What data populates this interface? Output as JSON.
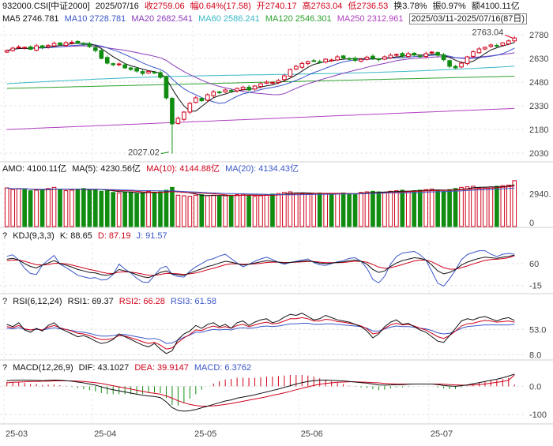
{
  "header": {
    "code": "932000.CSI[中证2000]",
    "date": "2025/07/16",
    "close": "收2759.06",
    "change": "幅0.64%(17.58)",
    "open": "开2740.17",
    "high": "高2763.04",
    "low": "低2736.53",
    "turnover": "换3.78%",
    "amplitude": "振0.97%",
    "amount": "额4100.11亿"
  },
  "ma_line": {
    "ma5": "MA5 2746.781",
    "ma10": "MA10 2728.781",
    "ma20": "MA20 2682.541",
    "ma60": "MA60 2586.241",
    "ma120": "MA120 2546.301",
    "ma250": "MA250 2312.961",
    "range": "2025/03/11-2025/07/16(87日)"
  },
  "panels": {
    "amo": {
      "amo": "AMO: 4100.11亿",
      "ma5": "MA(5): 4230.56亿",
      "ma10": "MA(10): 4144.88亿",
      "ma20": "MA(20): 4134.43亿"
    },
    "kdj": {
      "q": "?",
      "name": "KDJ(9,3,3)",
      "k": "K: 88.65",
      "d": "D: 87.19",
      "j": "J: 91.57"
    },
    "rsi": {
      "q": "?",
      "name": "RSI(6,12,24)",
      "r1": "RSI1: 69.37",
      "r2": "RSI2: 66.28",
      "r3": "RSI3: 61.58"
    },
    "macd": {
      "q": "?",
      "name": "MACD(12,26,9)",
      "dif": "DIF: 43.1027",
      "dea": "DEA: 39.9147",
      "macd": "MACD: 6.3762"
    }
  },
  "annotations": {
    "high": "2763.04",
    "low": "2027.02"
  },
  "colors": {
    "up": "#d0021b",
    "down": "#108d10",
    "ma5": "#111111",
    "ma10": "#3a56c9",
    "ma20": "#8a3ab9",
    "ma60": "#38b8c8",
    "ma120": "#2da12d",
    "ma250": "#b040c0"
  },
  "chart_data": {
    "type": "candlestick",
    "x_ticks": [
      "25-03",
      "25-04",
      "25-05",
      "25-06",
      "25-07"
    ],
    "price_axis": {
      "ticks": [
        "2780",
        "2630",
        "2480",
        "2330",
        "2180",
        "2030"
      ],
      "ylim": [
        1990,
        2800
      ]
    },
    "volume_axis": {
      "ticks": [
        "2940.",
        "0"
      ],
      "ylim": [
        0,
        4300
      ]
    },
    "kdj_axis": {
      "ticks": [
        "60",
        "-15"
      ],
      "ylim": [
        -40,
        130
      ]
    },
    "rsi_axis": {
      "ticks": [
        "53.0",
        "8.0"
      ],
      "ylim": [
        0,
        90
      ]
    },
    "macd_axis": {
      "ticks": [
        "0.0",
        "-100"
      ],
      "ylim": [
        -130,
        40
      ]
    },
    "month_starts": [
      0,
      15,
      32,
      50,
      72
    ],
    "closes": [
      2680,
      2695,
      2702,
      2700,
      2688,
      2710,
      2698,
      2712,
      2725,
      2718,
      2730,
      2732,
      2728,
      2720,
      2705,
      2680,
      2630,
      2600,
      2590,
      2595,
      2570,
      2560,
      2550,
      2535,
      2548,
      2540,
      2510,
      2380,
      2215,
      2250,
      2290,
      2345,
      2380,
      2362,
      2400,
      2418,
      2412,
      2430,
      2422,
      2440,
      2448,
      2430,
      2455,
      2470,
      2480,
      2478,
      2490,
      2520,
      2560,
      2580,
      2598,
      2610,
      2612,
      2605,
      2625,
      2620,
      2640,
      2632,
      2628,
      2618,
      2624,
      2638,
      2630,
      2622,
      2640,
      2650,
      2655,
      2645,
      2660,
      2652,
      2642,
      2660,
      2670,
      2650,
      2622,
      2580,
      2570,
      2600,
      2640,
      2672,
      2690,
      2700,
      2715,
      2710,
      2728,
      2741,
      2759
    ],
    "volume": [
      3450,
      3300,
      3400,
      3350,
      3200,
      3250,
      3300,
      3400,
      3500,
      3300,
      3200,
      3250,
      3350,
      3400,
      3300,
      3250,
      3150,
      3200,
      3050,
      3000,
      3100,
      3050,
      2950,
      3000,
      3150,
      3050,
      3100,
      3250,
      3500,
      2800,
      2750,
      2700,
      2800,
      2850,
      2750,
      2800,
      2700,
      2750,
      2800,
      2850,
      2900,
      2800,
      2700,
      2750,
      2850,
      2900,
      2950,
      3050,
      3100,
      3000,
      2950,
      2900,
      2950,
      3000,
      2900,
      2850,
      2950,
      3000,
      2950,
      2900,
      3050,
      3100,
      3150,
      3100,
      3050,
      3150,
      3200,
      3250,
      3150,
      3200,
      3250,
      3300,
      3350,
      3250,
      3150,
      3300,
      3400,
      3500,
      3550,
      3600,
      3450,
      3500,
      3550,
      3600,
      3650,
      3700,
      4100
    ],
    "kdj": {
      "K": [
        75,
        78,
        72,
        60,
        50,
        45,
        55,
        62,
        70,
        60,
        55,
        48,
        40,
        35,
        30,
        28,
        22,
        20,
        25,
        40,
        35,
        30,
        22,
        15,
        12,
        20,
        30,
        35,
        25,
        22,
        20,
        28,
        35,
        42,
        50,
        55,
        62,
        68,
        65,
        60,
        55,
        58,
        62,
        66,
        70,
        68,
        65,
        62,
        64,
        66,
        68,
        70,
        66,
        62,
        60,
        62,
        64,
        66,
        70,
        72,
        68,
        58,
        40,
        30,
        35,
        50,
        62,
        70,
        75,
        80,
        78,
        72,
        55,
        35,
        25,
        30,
        40,
        55,
        65,
        72,
        78,
        82,
        80,
        78,
        82,
        85,
        89
      ],
      "D": [
        70,
        72,
        72,
        68,
        62,
        56,
        55,
        57,
        61,
        61,
        59,
        55,
        50,
        45,
        40,
        36,
        31,
        27,
        26,
        31,
        32,
        31,
        28,
        24,
        20,
        20,
        23,
        27,
        26,
        25,
        23,
        25,
        28,
        33,
        39,
        44,
        50,
        56,
        59,
        59,
        58,
        58,
        59,
        61,
        64,
        65,
        65,
        64,
        64,
        65,
        66,
        67,
        67,
        65,
        63,
        63,
        63,
        64,
        66,
        68,
        68,
        65,
        57,
        48,
        44,
        46,
        51,
        57,
        63,
        69,
        72,
        72,
        66,
        56,
        46,
        41,
        41,
        46,
        52,
        59,
        65,
        71,
        74,
        75,
        77,
        80,
        87
      ],
      "J": [
        85,
        90,
        72,
        44,
        26,
        23,
        55,
        72,
        88,
        58,
        47,
        34,
        20,
        15,
        10,
        12,
        4,
        6,
        23,
        58,
        41,
        28,
        10,
        -3,
        -4,
        20,
        44,
        51,
        23,
        16,
        14,
        34,
        49,
        60,
        72,
        77,
        86,
        92,
        77,
        62,
        49,
        58,
        68,
        76,
        82,
        74,
        65,
        58,
        64,
        68,
        72,
        76,
        64,
        56,
        54,
        60,
        66,
        70,
        78,
        80,
        68,
        44,
        6,
        -6,
        17,
        58,
        84,
        96,
        99,
        102,
        90,
        72,
        33,
        -7,
        -17,
        8,
        38,
        73,
        91,
        98,
        104,
        104,
        92,
        84,
        92,
        95,
        92
      ]
    },
    "rsi": {
      "RSI1": [
        62,
        58,
        65,
        52,
        48,
        55,
        50,
        60,
        65,
        55,
        50,
        45,
        40,
        42,
        38,
        32,
        28,
        30,
        35,
        45,
        40,
        35,
        30,
        25,
        22,
        28,
        18,
        10,
        15,
        35,
        45,
        50,
        60,
        55,
        62,
        65,
        58,
        62,
        55,
        65,
        68,
        60,
        66,
        70,
        72,
        65,
        68,
        75,
        80,
        78,
        82,
        76,
        70,
        72,
        78,
        74,
        70,
        68,
        66,
        62,
        58,
        50,
        38,
        45,
        58,
        66,
        70,
        62,
        64,
        58,
        52,
        48,
        40,
        32,
        30,
        42,
        55,
        68,
        72,
        70,
        74,
        76,
        72,
        68,
        72,
        74,
        69
      ],
      "RSI2": [
        58,
        56,
        60,
        54,
        52,
        54,
        52,
        57,
        60,
        56,
        53,
        50,
        46,
        45,
        42,
        38,
        35,
        35,
        37,
        42,
        41,
        38,
        35,
        31,
        28,
        30,
        25,
        18,
        20,
        30,
        38,
        44,
        52,
        51,
        56,
        59,
        56,
        58,
        55,
        60,
        62,
        58,
        61,
        64,
        66,
        63,
        64,
        68,
        72,
        72,
        74,
        72,
        68,
        68,
        71,
        70,
        67,
        66,
        64,
        62,
        59,
        54,
        45,
        47,
        55,
        61,
        64,
        61,
        62,
        59,
        55,
        52,
        46,
        40,
        37,
        42,
        50,
        59,
        63,
        64,
        67,
        69,
        68,
        66,
        67,
        68,
        66
      ],
      "RSI3": [
        55,
        54,
        56,
        53,
        52,
        53,
        52,
        54,
        56,
        54,
        53,
        51,
        49,
        48,
        46,
        43,
        41,
        41,
        42,
        44,
        44,
        42,
        40,
        38,
        36,
        37,
        34,
        28,
        29,
        34,
        39,
        43,
        48,
        48,
        51,
        53,
        52,
        53,
        52,
        55,
        56,
        55,
        56,
        58,
        59,
        58,
        59,
        61,
        63,
        63,
        64,
        64,
        62,
        62,
        63,
        63,
        62,
        61,
        60,
        59,
        58,
        55,
        50,
        50,
        54,
        57,
        59,
        58,
        58,
        57,
        55,
        54,
        51,
        47,
        45,
        46,
        50,
        55,
        58,
        59,
        60,
        61,
        61,
        61,
        61,
        61,
        62
      ]
    },
    "macd": {
      "DIF": [
        20,
        21,
        22,
        22,
        21,
        21,
        20,
        21,
        22,
        21,
        20,
        18,
        15,
        12,
        8,
        4,
        -2,
        -8,
        -12,
        -16,
        -20,
        -24,
        -28,
        -32,
        -34,
        -36,
        -40,
        -55,
        -75,
        -85,
        -88,
        -86,
        -82,
        -76,
        -70,
        -64,
        -58,
        -52,
        -48,
        -42,
        -38,
        -34,
        -30,
        -25,
        -20,
        -15,
        -10,
        -4,
        2,
        8,
        13,
        17,
        20,
        21,
        22,
        21,
        20,
        19,
        17,
        15,
        13,
        11,
        8,
        5,
        4,
        5,
        6,
        6,
        7,
        8,
        8,
        8,
        8,
        6,
        3,
        1,
        0,
        2,
        5,
        9,
        13,
        17,
        21,
        25,
        30,
        36,
        43
      ],
      "DEA": [
        12,
        14,
        15,
        16,
        17,
        17,
        18,
        18,
        19,
        19,
        19,
        19,
        18,
        17,
        15,
        13,
        10,
        6,
        2,
        -2,
        -6,
        -10,
        -14,
        -18,
        -22,
        -25,
        -28,
        -34,
        -42,
        -51,
        -58,
        -64,
        -68,
        -70,
        -70,
        -69,
        -67,
        -64,
        -61,
        -57,
        -53,
        -49,
        -45,
        -41,
        -37,
        -32,
        -28,
        -23,
        -18,
        -12,
        -7,
        -2,
        3,
        7,
        10,
        12,
        14,
        15,
        16,
        16,
        15,
        14,
        13,
        12,
        10,
        9,
        8,
        8,
        8,
        8,
        8,
        8,
        8,
        8,
        7,
        6,
        5,
        4,
        4,
        5,
        6,
        8,
        11,
        14,
        17,
        21,
        40
      ],
      "MACD": [
        16,
        14,
        14,
        12,
        8,
        8,
        4,
        6,
        6,
        4,
        2,
        -2,
        -6,
        -10,
        -14,
        -18,
        -24,
        -28,
        -28,
        -28,
        -28,
        -28,
        -28,
        -28,
        -24,
        -22,
        -24,
        -42,
        -66,
        -68,
        -60,
        -44,
        -28,
        -12,
        0,
        10,
        18,
        24,
        26,
        30,
        30,
        30,
        30,
        32,
        34,
        34,
        36,
        38,
        40,
        40,
        40,
        38,
        34,
        28,
        24,
        18,
        12,
        8,
        2,
        -2,
        -4,
        -6,
        -10,
        -14,
        -12,
        -8,
        -4,
        -4,
        -2,
        0,
        0,
        0,
        0,
        -4,
        -8,
        -10,
        -10,
        -4,
        2,
        8,
        14,
        18,
        20,
        22,
        26,
        30,
        6
      ]
    }
  }
}
